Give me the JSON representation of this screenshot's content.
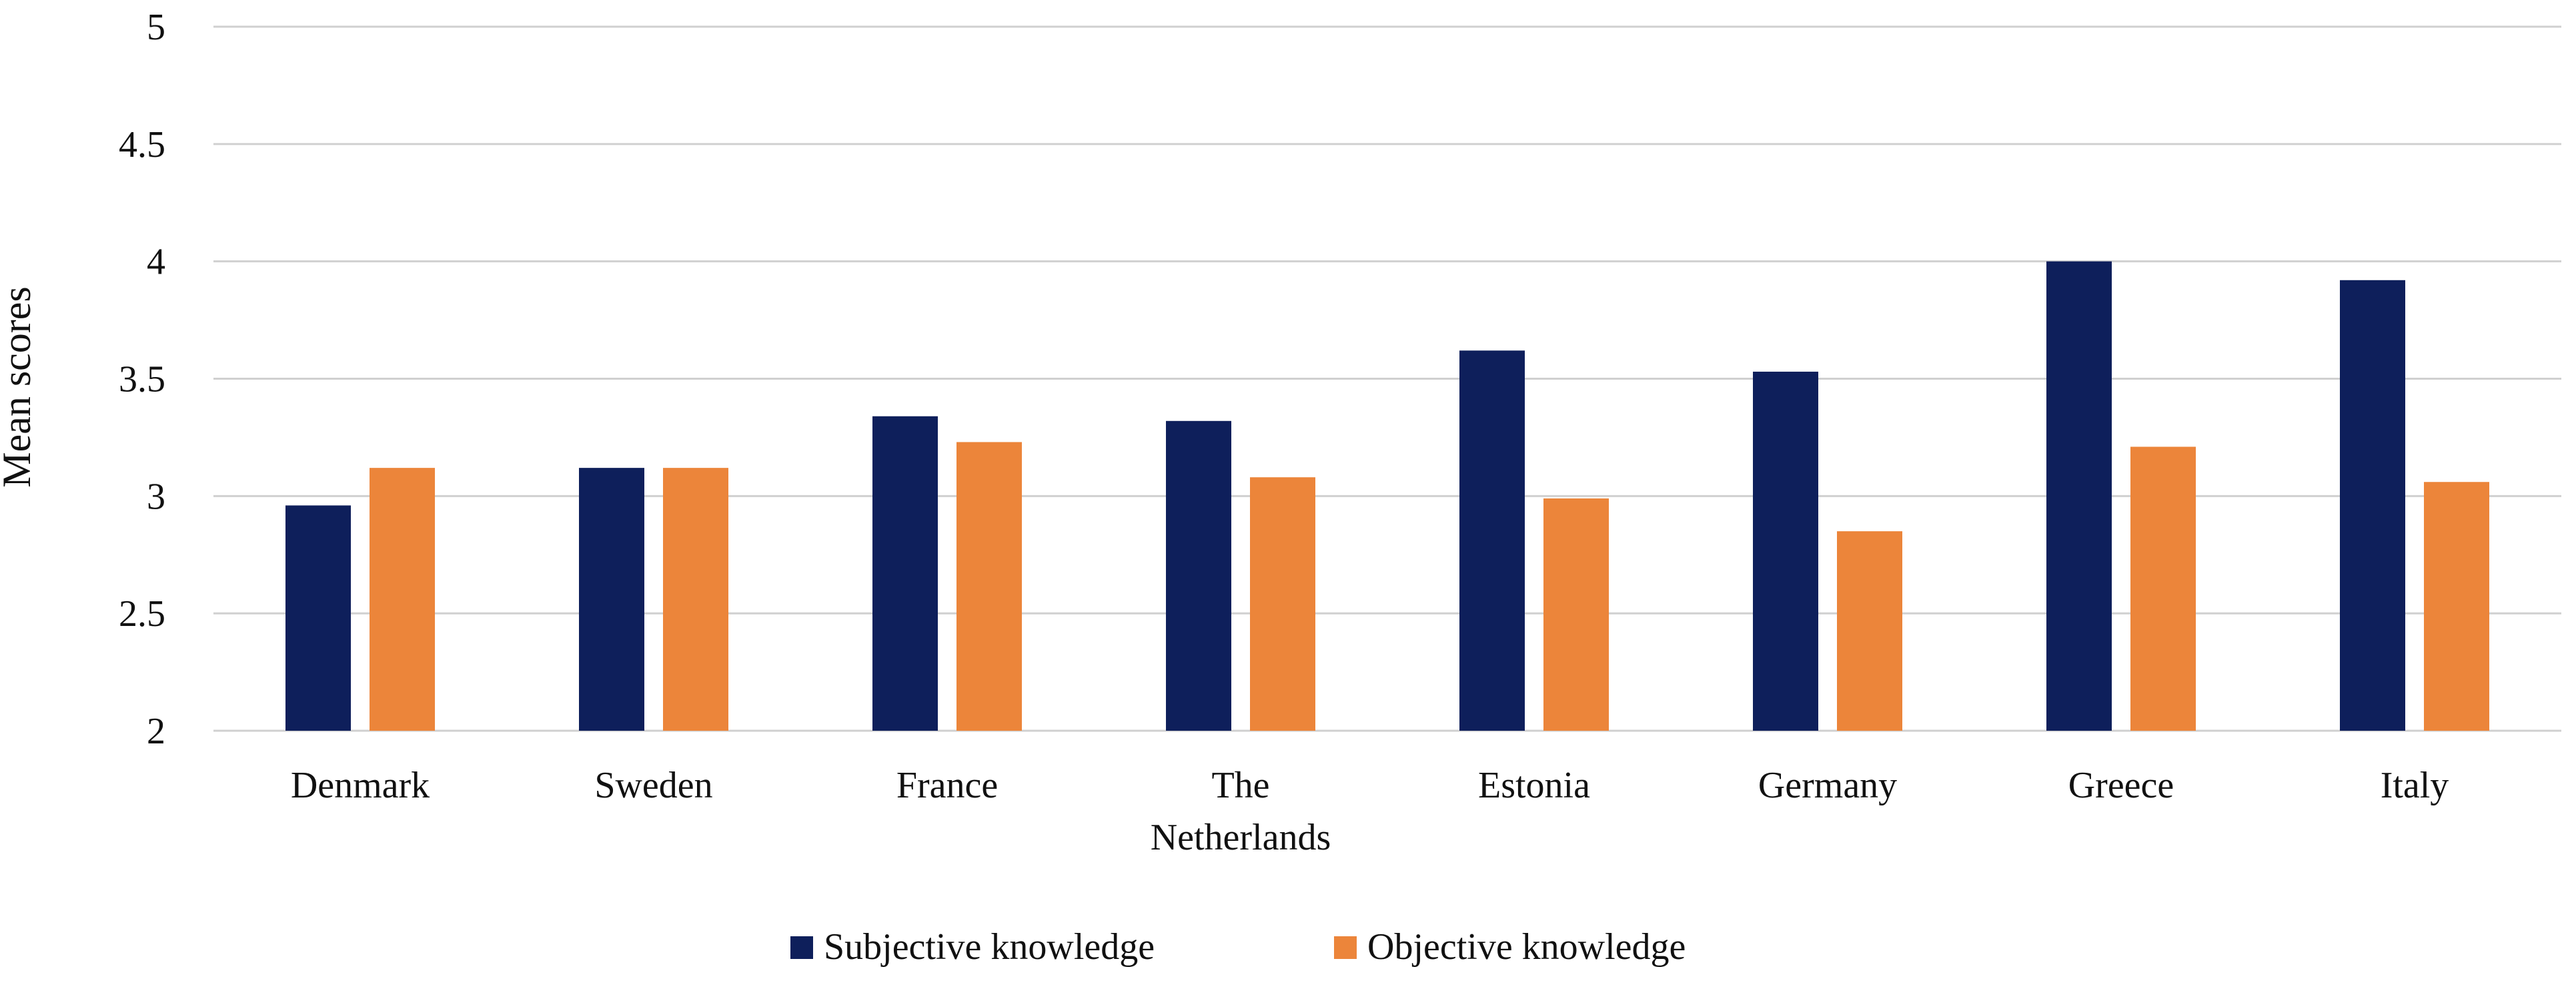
{
  "chart_data": {
    "type": "bar",
    "title": "",
    "xlabel": "",
    "ylabel": "Mean scores",
    "ylim": [
      2,
      5
    ],
    "yticks": [
      "2",
      "2.5",
      "3",
      "3.5",
      "4",
      "4.5",
      "5"
    ],
    "grid": true,
    "legend_position": "bottom",
    "categories": [
      [
        "Denmark"
      ],
      [
        "Sweden"
      ],
      [
        "France"
      ],
      [
        "The",
        "Netherlands"
      ],
      [
        "Estonia"
      ],
      [
        "Germany"
      ],
      [
        "Greece"
      ],
      [
        "Italy"
      ]
    ],
    "series": [
      {
        "name": "Subjective knowledge",
        "color": "#0e1f5b",
        "values": [
          2.96,
          3.12,
          3.34,
          3.32,
          3.62,
          3.53,
          4.0,
          3.92
        ]
      },
      {
        "name": "Objective knowledge",
        "color": "#ec853a",
        "values": [
          3.12,
          3.12,
          3.23,
          3.08,
          2.99,
          2.85,
          3.21,
          3.06
        ]
      }
    ]
  }
}
